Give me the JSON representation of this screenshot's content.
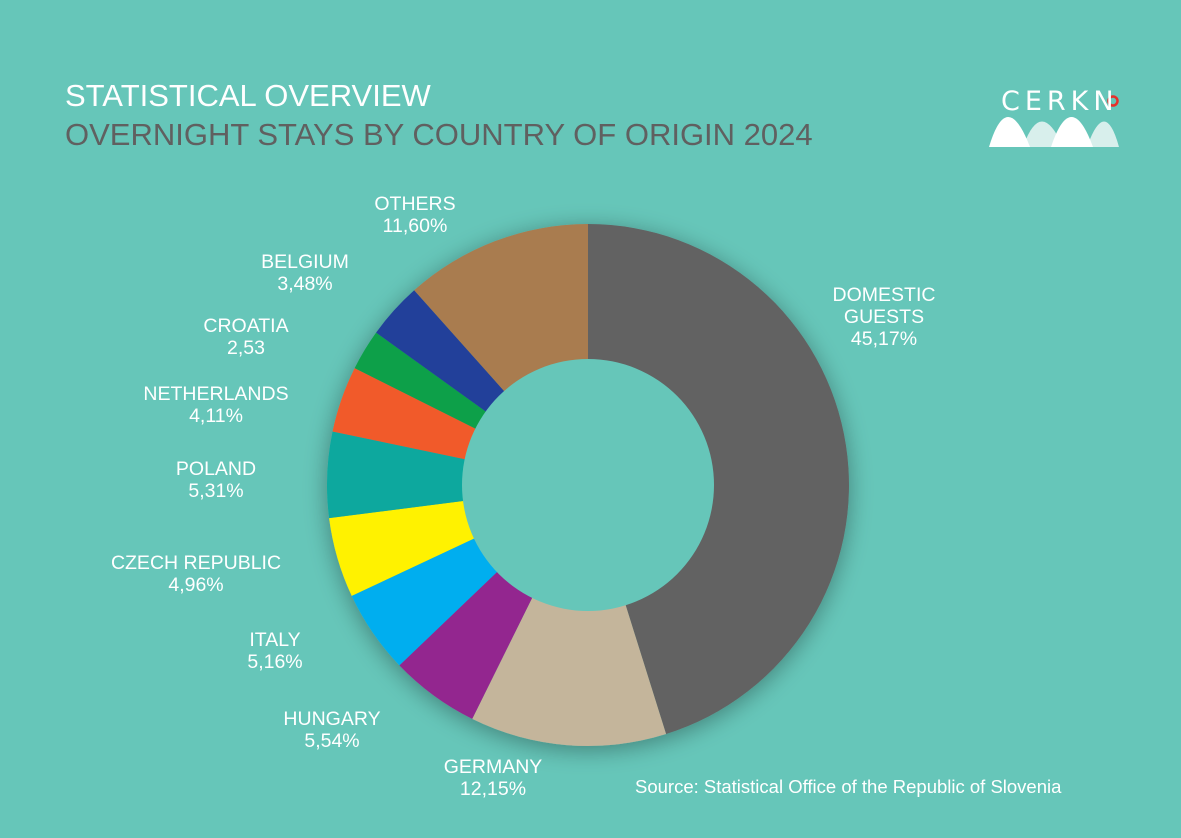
{
  "header": {
    "title": "STATISTICAL OVERVIEW",
    "subtitle": "OVERNIGHT STAYS BY COUNTRY OF ORIGIN 2024"
  },
  "logo": {
    "text": "CERKNO"
  },
  "source": "Source: Statistical Office of the Republic of Slovenia",
  "colors": {
    "background": "#66c6b9",
    "title": "#ffffff",
    "subtitle": "#606060"
  },
  "chart_data": {
    "type": "pie",
    "donut": true,
    "title": "OVERNIGHT STAYS BY COUNTRY OF ORIGIN 2024",
    "unit": "%",
    "slices": [
      {
        "name": "DOMESTIC GUESTS",
        "label": "DOMESTIC\nGUESTS",
        "value": 45.17,
        "display": "45,17%",
        "color": "#626262"
      },
      {
        "name": "GERMANY",
        "label": "GERMANY",
        "value": 12.15,
        "display": "12,15%",
        "color": "#c4b59b"
      },
      {
        "name": "HUNGARY",
        "label": "HUNGARY",
        "value": 5.54,
        "display": "5,54%",
        "color": "#93278f"
      },
      {
        "name": "ITALY",
        "label": "ITALY",
        "value": 5.16,
        "display": "5,16%",
        "color": "#00aeef"
      },
      {
        "name": "CZECH REPUBLIC",
        "label": "CZECH REPUBLIC",
        "value": 4.96,
        "display": "4,96%",
        "color": "#fff200"
      },
      {
        "name": "POLAND",
        "label": "POLAND",
        "value": 5.31,
        "display": "5,31%",
        "color": "#11a89e"
      },
      {
        "name": "NETHERLANDS",
        "label": "NETHERLANDS",
        "value": 4.11,
        "display": "4,11%",
        "color": "#f15a2b"
      },
      {
        "name": "CROATIA",
        "label": "CROATIA",
        "value": 2.53,
        "display": "2,53",
        "color": "#0ca04a"
      },
      {
        "name": "BELGIUM",
        "label": "BELGIUM",
        "value": 3.48,
        "display": "3,48%",
        "color": "#21409a"
      },
      {
        "name": "OTHERS",
        "label": "OTHERS",
        "value": 11.6,
        "display": "11,60%",
        "color": "#a97c50"
      }
    ]
  }
}
